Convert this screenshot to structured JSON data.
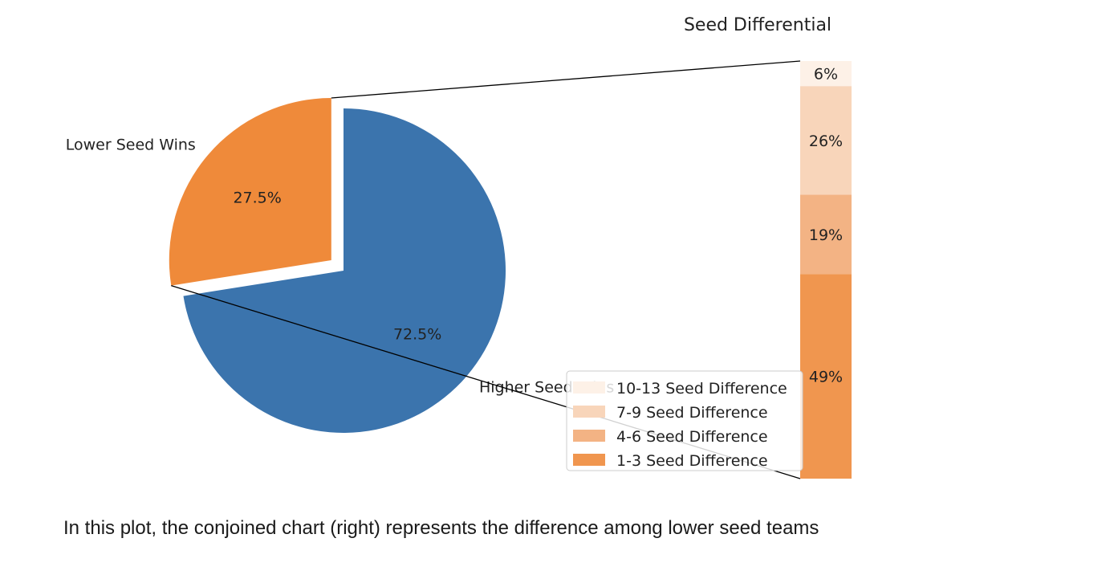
{
  "chart_data": [
    {
      "type": "pie",
      "title": "",
      "slices": [
        {
          "label": "Lower Seed Wins",
          "value": 27.5,
          "pct_label": "27.5%",
          "color": "#ef8a3a",
          "exploded": true
        },
        {
          "label": "Higher Seed Wins",
          "value": 72.5,
          "pct_label": "72.5%",
          "color": "#3b74ad",
          "exploded": false
        }
      ]
    },
    {
      "type": "bar",
      "stacked": true,
      "title": "Seed Differential",
      "categories": [
        "Lower Seed Wins"
      ],
      "series": [
        {
          "name": "1-3 Seed Difference",
          "values": [
            49
          ],
          "label": "49%",
          "color": "#f0964f"
        },
        {
          "name": "4-6 Seed Difference",
          "values": [
            19
          ],
          "label": "19%",
          "color": "#f3b384"
        },
        {
          "name": "7-9 Seed Difference",
          "values": [
            26
          ],
          "label": "26%",
          "color": "#f8d5ba"
        },
        {
          "name": "10-13 Seed Difference",
          "values": [
            6
          ],
          "label": "6%",
          "color": "#fdf1e7"
        }
      ],
      "legend": "lower-left",
      "axes_visible": false
    }
  ],
  "caption": "In this plot, the conjoined chart (right) represents the difference among lower seed teams"
}
